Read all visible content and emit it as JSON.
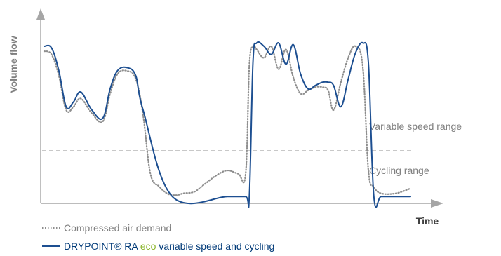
{
  "chart_data": {
    "type": "line",
    "title": "",
    "xlabel": "Time",
    "ylabel": "Volume flow",
    "grid": false,
    "legend_position": "bottom-left",
    "threshold_line": {
      "y": 0.3,
      "style": "dashed",
      "color": "#a6a6a6"
    },
    "region_labels": [
      {
        "label": "Variable speed range",
        "y": 0.5
      },
      {
        "label": "Cycling range",
        "y": 0.2
      }
    ],
    "xlim": [
      0,
      1
    ],
    "ylim": [
      0,
      1
    ],
    "series": [
      {
        "name": "Compressed air demand",
        "style": "dotted",
        "color": "#8e8e8e",
        "x": [
          0.0,
          0.02,
          0.04,
          0.06,
          0.08,
          0.1,
          0.13,
          0.16,
          0.18,
          0.2,
          0.225,
          0.25,
          0.27,
          0.29,
          0.315,
          0.335,
          0.35,
          0.365,
          0.38,
          0.41,
          0.44,
          0.47,
          0.5,
          0.53,
          0.55,
          0.56,
          0.57,
          0.58,
          0.6,
          0.62,
          0.64,
          0.66,
          0.68,
          0.7,
          0.72,
          0.74,
          0.76,
          0.775,
          0.79,
          0.81,
          0.83,
          0.85,
          0.87,
          0.885,
          0.9,
          0.92,
          0.96,
          1.0
        ],
        "values": [
          0.91,
          0.89,
          0.76,
          0.55,
          0.57,
          0.62,
          0.53,
          0.48,
          0.65,
          0.77,
          0.79,
          0.74,
          0.52,
          0.16,
          0.08,
          0.04,
          0.03,
          0.03,
          0.04,
          0.05,
          0.1,
          0.15,
          0.18,
          0.16,
          0.16,
          0.82,
          0.94,
          0.92,
          0.87,
          0.94,
          0.8,
          0.92,
          0.75,
          0.65,
          0.67,
          0.69,
          0.69,
          0.67,
          0.55,
          0.72,
          0.87,
          0.94,
          0.81,
          0.18,
          0.08,
          0.04,
          0.04,
          0.07
        ]
      },
      {
        "name": "DRYPOINT® RA eco variable speed and cycling",
        "style": "solid",
        "color": "#1d4f91",
        "x": [
          0.0,
          0.02,
          0.04,
          0.06,
          0.08,
          0.1,
          0.13,
          0.16,
          0.18,
          0.2,
          0.225,
          0.25,
          0.27,
          0.35,
          0.5,
          0.55,
          0.56,
          0.57,
          0.58,
          0.6,
          0.62,
          0.64,
          0.66,
          0.68,
          0.7,
          0.72,
          0.74,
          0.76,
          0.775,
          0.79,
          0.81,
          0.83,
          0.85,
          0.87,
          0.885,
          0.9,
          0.92,
          0.96,
          1.0
        ],
        "values": [
          0.94,
          0.93,
          0.79,
          0.57,
          0.6,
          0.66,
          0.55,
          0.5,
          0.68,
          0.79,
          0.81,
          0.76,
          0.55,
          0.02,
          0.02,
          0.02,
          0.02,
          0.84,
          0.96,
          0.94,
          0.89,
          0.96,
          0.83,
          0.95,
          0.77,
          0.68,
          0.7,
          0.72,
          0.72,
          0.7,
          0.57,
          0.74,
          0.9,
          0.96,
          0.84,
          0.02,
          0.02,
          0.02,
          0.02
        ]
      }
    ],
    "legend": {
      "items": [
        {
          "prefix": "",
          "highlight": "",
          "suffix": "Compressed air demand",
          "style": "dotted",
          "color": "#8e8e8e"
        },
        {
          "prefix": "DRYPOINT® RA ",
          "highlight": "eco",
          "suffix": " variable speed and cycling",
          "style": "solid",
          "color": "#1d4f91",
          "highlight_color": "#8ab52a"
        }
      ]
    },
    "colors": {
      "axis": "#a6a6a6",
      "label": "#7f7f7f",
      "text": "#7f7f7f",
      "legend_text": "#003a78"
    }
  }
}
